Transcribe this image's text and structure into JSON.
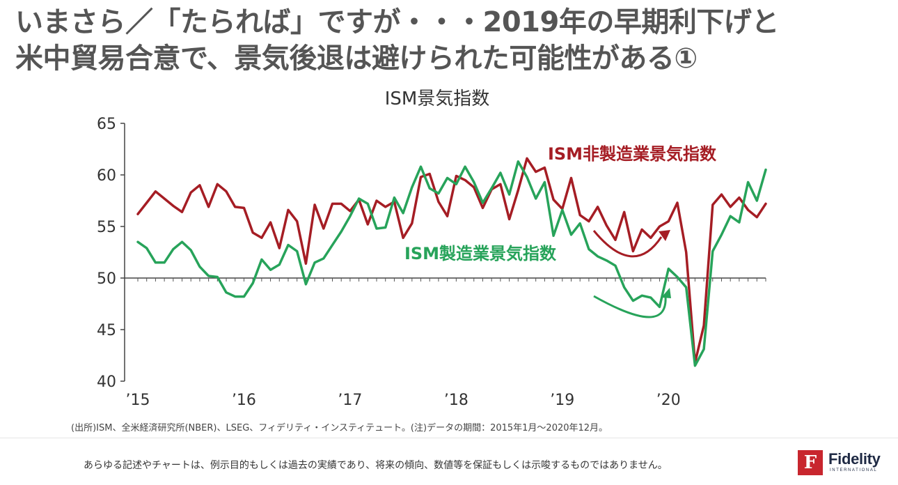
{
  "headline": {
    "line1": "いまさら／「たられば」ですが・・・2019年の早期利下げと",
    "line2": "米中貿易合意で、景気後退は避けられた可能性がある①"
  },
  "chart_data": {
    "type": "line",
    "title": "ISM景気指数",
    "ylim": [
      40,
      65
    ],
    "yticks": [
      "65",
      "60",
      "55",
      "50",
      "45",
      "40"
    ],
    "yticks_values": [
      65,
      60,
      55,
      50,
      45,
      40
    ],
    "x_start": "2015-01",
    "x_end": "2020-12",
    "xticks": [
      "’15",
      "’16",
      "’17",
      "’18",
      "’19",
      "’20"
    ],
    "series": [
      {
        "name": "ISM非製造業景気指数",
        "color": "#a51d24",
        "values": [
          56.2,
          57.3,
          58.4,
          57.7,
          57.0,
          56.4,
          58.3,
          59.0,
          56.9,
          59.1,
          58.4,
          56.9,
          56.8,
          54.4,
          53.9,
          55.4,
          52.9,
          56.6,
          55.5,
          51.4,
          57.1,
          54.8,
          57.2,
          57.2,
          56.5,
          57.6,
          55.2,
          57.5,
          56.9,
          57.4,
          53.9,
          55.3,
          59.8,
          60.1,
          57.4,
          56.0,
          59.9,
          59.5,
          58.8,
          56.8,
          58.6,
          59.1,
          55.7,
          58.5,
          61.6,
          60.3,
          60.7,
          57.6,
          56.7,
          59.7,
          56.1,
          55.5,
          56.9,
          55.1,
          53.7,
          56.4,
          52.6,
          54.7,
          53.9,
          55.0,
          55.5,
          57.3,
          52.5,
          41.8,
          45.4,
          57.1,
          58.1,
          56.9,
          57.8,
          56.6,
          55.9,
          57.2
        ]
      },
      {
        "name": "ISM製造業景気指数",
        "color": "#27a35a",
        "values": [
          53.5,
          52.9,
          51.5,
          51.5,
          52.8,
          53.5,
          52.7,
          51.1,
          50.2,
          50.1,
          48.6,
          48.2,
          48.2,
          49.5,
          51.8,
          50.8,
          51.3,
          53.2,
          52.6,
          49.4,
          51.5,
          51.9,
          53.2,
          54.5,
          56.0,
          57.7,
          57.2,
          54.8,
          54.9,
          57.8,
          56.3,
          58.8,
          60.8,
          58.7,
          58.2,
          59.7,
          59.1,
          60.8,
          59.3,
          57.3,
          58.7,
          60.2,
          58.1,
          61.3,
          59.8,
          57.7,
          59.3,
          54.1,
          56.6,
          54.2,
          55.3,
          52.8,
          52.1,
          51.7,
          51.2,
          49.1,
          47.8,
          48.3,
          48.1,
          47.2,
          50.9,
          50.1,
          49.1,
          41.5,
          43.1,
          52.6,
          54.2,
          56.0,
          55.4,
          59.3,
          57.5,
          60.5
        ]
      }
    ],
    "series_labels": [
      "ISM非製造業景気指数",
      "ISM製造業景気指数"
    ],
    "grid": false
  },
  "source": "(出所)ISM、全米経済研究所(NBER)、LSEG、フィデリティ・インスティテュート。(注)データの期間：2015年1月～2020年12月。",
  "disclaimer": "あらゆる記述やチャートは、例示目的もしくは過去の実績であり、将来の傾向、数値等を保証もしくは示唆するものではありません。",
  "logo": {
    "mark": "F",
    "name": "Fidelity",
    "sub": "INTERNATIONAL",
    "color": "#c8262e"
  }
}
